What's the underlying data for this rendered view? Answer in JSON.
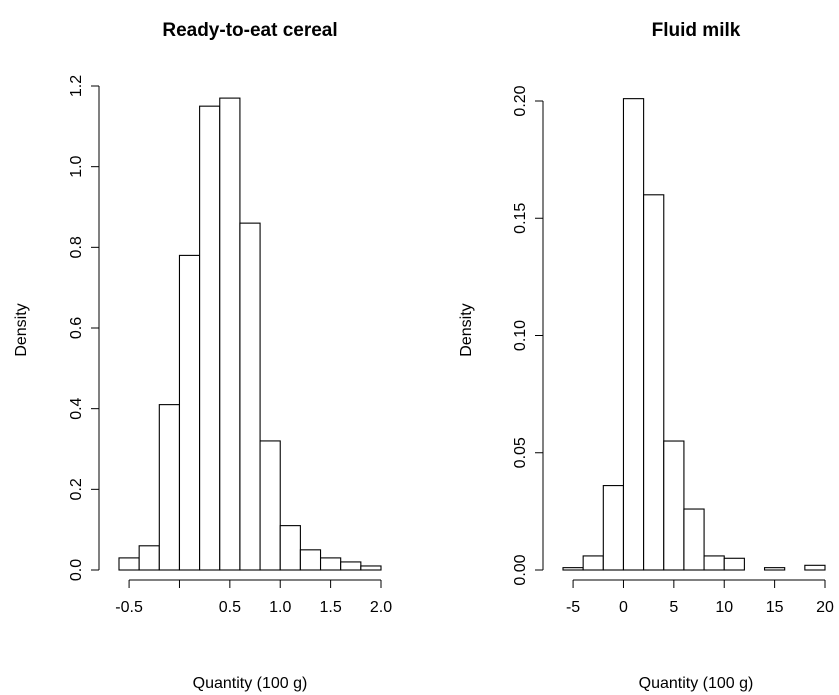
{
  "chart_data": [
    {
      "type": "bar",
      "title": "Ready-to-eat cereal",
      "xlabel": "Quantity (100 g)",
      "ylabel": "Density",
      "xlim": [
        -0.6,
        2.0
      ],
      "ylim": [
        0,
        1.2
      ],
      "grid": false,
      "x_ticks": [
        -0.5,
        0.0,
        0.5,
        1.0,
        1.5,
        2.0
      ],
      "x_tick_labels": [
        "-0.5",
        "",
        "0.5",
        "1.0",
        "1.5",
        "2.0"
      ],
      "y_ticks": [
        0.0,
        0.2,
        0.4,
        0.6,
        0.8,
        1.0,
        1.2
      ],
      "y_tick_labels": [
        "0.0",
        "0.2",
        "0.4",
        "0.6",
        "0.8",
        "1.0",
        "1.2"
      ],
      "bins": [
        {
          "x0": -0.6,
          "x1": -0.4,
          "density": 0.03
        },
        {
          "x0": -0.4,
          "x1": -0.2,
          "density": 0.06
        },
        {
          "x0": -0.2,
          "x1": 0.0,
          "density": 0.41
        },
        {
          "x0": 0.0,
          "x1": 0.2,
          "density": 0.78
        },
        {
          "x0": 0.2,
          "x1": 0.4,
          "density": 1.15
        },
        {
          "x0": 0.4,
          "x1": 0.6,
          "density": 1.17
        },
        {
          "x0": 0.6,
          "x1": 0.8,
          "density": 0.86
        },
        {
          "x0": 0.8,
          "x1": 1.0,
          "density": 0.32
        },
        {
          "x0": 1.0,
          "x1": 1.2,
          "density": 0.11
        },
        {
          "x0": 1.2,
          "x1": 1.4,
          "density": 0.05
        },
        {
          "x0": 1.4,
          "x1": 1.6,
          "density": 0.03
        },
        {
          "x0": 1.6,
          "x1": 1.8,
          "density": 0.02
        },
        {
          "x0": 1.8,
          "x1": 2.0,
          "density": 0.01
        }
      ]
    },
    {
      "type": "bar",
      "title": "Fluid milk",
      "xlabel": "Quantity (100 g)",
      "ylabel": "Density",
      "xlim": [
        -6,
        20
      ],
      "ylim": [
        0,
        0.2
      ],
      "grid": false,
      "x_ticks": [
        -5,
        0,
        5,
        10,
        15,
        20
      ],
      "x_tick_labels": [
        "-5",
        "0",
        "5",
        "10",
        "15",
        "20"
      ],
      "y_ticks": [
        0.0,
        0.05,
        0.1,
        0.15,
        0.2
      ],
      "y_tick_labels": [
        "0.00",
        "0.05",
        "0.10",
        "0.15",
        "0.20"
      ],
      "bins": [
        {
          "x0": -6,
          "x1": -4,
          "density": 0.001
        },
        {
          "x0": -4,
          "x1": -2,
          "density": 0.006
        },
        {
          "x0": -2,
          "x1": 0,
          "density": 0.036
        },
        {
          "x0": 0,
          "x1": 2,
          "density": 0.201
        },
        {
          "x0": 2,
          "x1": 4,
          "density": 0.16
        },
        {
          "x0": 4,
          "x1": 6,
          "density": 0.055
        },
        {
          "x0": 6,
          "x1": 8,
          "density": 0.026
        },
        {
          "x0": 8,
          "x1": 10,
          "density": 0.006
        },
        {
          "x0": 10,
          "x1": 12,
          "density": 0.005
        },
        {
          "x0": 12,
          "x1": 14,
          "density": 0.0
        },
        {
          "x0": 14,
          "x1": 16,
          "density": 0.001
        },
        {
          "x0": 16,
          "x1": 18,
          "density": 0.0
        },
        {
          "x0": 18,
          "x1": 20,
          "density": 0.002
        }
      ]
    }
  ]
}
